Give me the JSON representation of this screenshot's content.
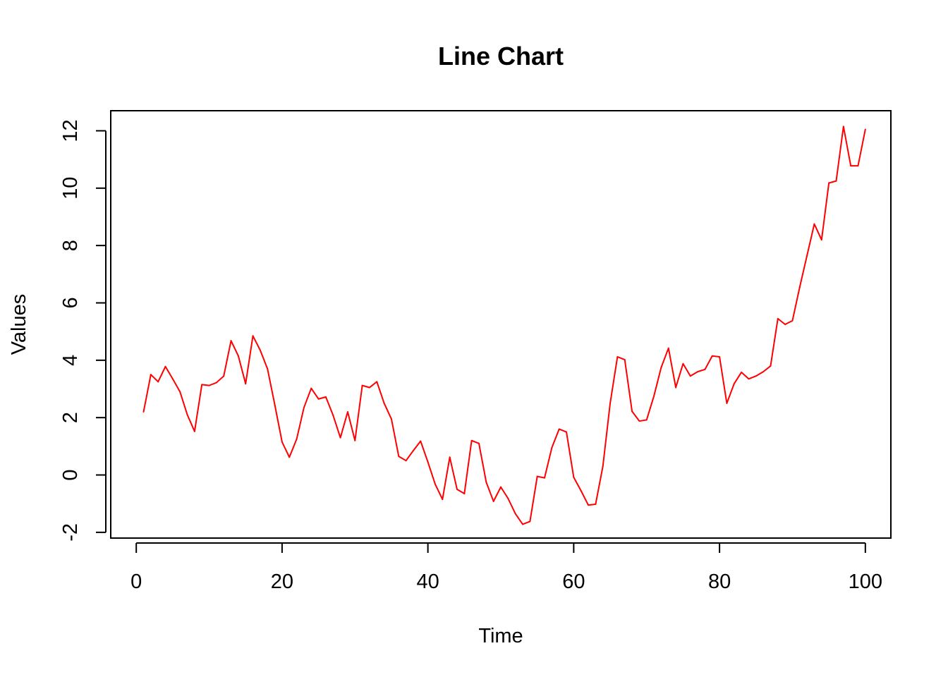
{
  "chart_data": {
    "type": "line",
    "title": "Line Chart",
    "xlabel": "Time",
    "ylabel": "Values",
    "xlim": [
      -3.5,
      103.5
    ],
    "ylim": [
      -2.2,
      12.7
    ],
    "x_ticks": [
      0,
      20,
      40,
      60,
      80,
      100
    ],
    "x_tick_labels": [
      "0",
      "20",
      "40",
      "60",
      "80",
      "100"
    ],
    "y_ticks": [
      -2,
      0,
      2,
      4,
      6,
      8,
      10,
      12
    ],
    "y_tick_labels": [
      "-2",
      "0",
      "2",
      "4",
      "6",
      "8",
      "10",
      "12"
    ],
    "grid": false,
    "legend": "none",
    "series_color": "#ff0000",
    "x": [
      1,
      2,
      3,
      4,
      5,
      6,
      7,
      8,
      9,
      10,
      11,
      12,
      13,
      14,
      15,
      16,
      17,
      18,
      19,
      20,
      21,
      22,
      23,
      24,
      25,
      26,
      27,
      28,
      29,
      30,
      31,
      32,
      33,
      34,
      35,
      36,
      37,
      38,
      39,
      40,
      41,
      42,
      43,
      44,
      45,
      46,
      47,
      48,
      49,
      50,
      51,
      52,
      53,
      54,
      55,
      56,
      57,
      58,
      59,
      60,
      61,
      62,
      63,
      64,
      65,
      66,
      67,
      68,
      69,
      70,
      71,
      72,
      73,
      74,
      75,
      76,
      77,
      78,
      79,
      80,
      81,
      82,
      83,
      84,
      85,
      86,
      87,
      88,
      89,
      90,
      91,
      92,
      93,
      94,
      95,
      96,
      97,
      98,
      99,
      100
    ],
    "series": [
      {
        "values": [
          2.2,
          3.5,
          3.25,
          3.78,
          3.35,
          2.9,
          2.1,
          1.52,
          3.15,
          3.12,
          3.22,
          3.45,
          4.68,
          4.15,
          3.18,
          4.85,
          4.35,
          3.7,
          2.45,
          1.15,
          0.62,
          1.25,
          2.35,
          3.02,
          2.65,
          2.72,
          2.08,
          1.3,
          2.2,
          1.2,
          3.12,
          3.05,
          3.25,
          2.5,
          1.95,
          0.65,
          0.5,
          0.85,
          1.18,
          0.45,
          -0.32,
          -0.85,
          0.62,
          -0.5,
          -0.65,
          1.2,
          1.1,
          -0.25,
          -0.92,
          -0.42,
          -0.82,
          -1.35,
          -1.72,
          -1.62,
          -0.05,
          -0.1,
          0.95,
          1.6,
          1.5,
          -0.08,
          -0.55,
          -1.05,
          -1.02,
          0.3,
          2.5,
          4.12,
          4.02,
          2.22,
          1.88,
          1.92,
          2.75,
          3.75,
          4.42,
          3.05,
          3.88,
          3.45,
          3.6,
          3.68,
          4.15,
          4.12,
          2.5,
          3.18,
          3.58,
          3.35,
          3.45,
          3.6,
          3.8,
          5.45,
          5.25,
          5.38,
          6.55,
          7.65,
          8.75,
          8.2,
          10.18,
          10.25,
          12.15,
          10.78,
          10.78,
          12.05
        ]
      }
    ]
  }
}
